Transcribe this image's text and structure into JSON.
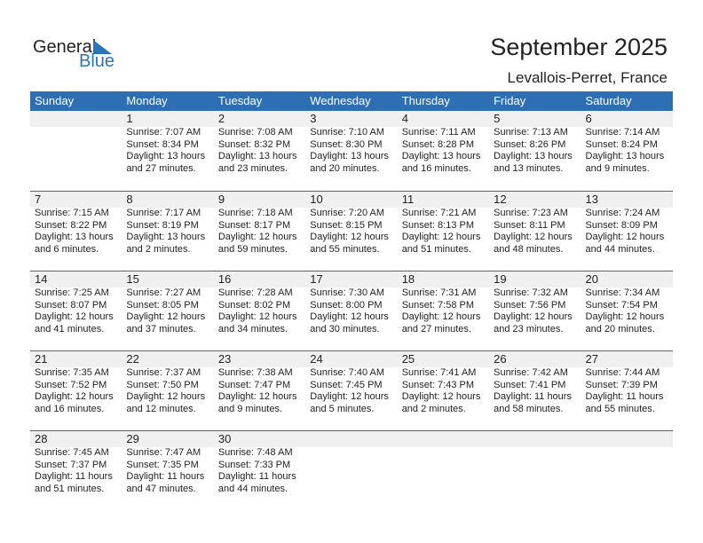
{
  "logo": {
    "line1": "General",
    "line2": "Blue"
  },
  "title": "September 2025",
  "location": "Levallois-Perret, France",
  "weekdays": [
    "Sunday",
    "Monday",
    "Tuesday",
    "Wednesday",
    "Thursday",
    "Friday",
    "Saturday"
  ],
  "colors": {
    "header": "#2e6fb3",
    "band": "#f0f0f0"
  },
  "weeks": [
    [
      null,
      {
        "day": "1",
        "sunrise": "Sunrise: 7:07 AM",
        "sunset": "Sunset: 8:34 PM",
        "daylight1": "Daylight: 13 hours",
        "daylight2": "and 27 minutes."
      },
      {
        "day": "2",
        "sunrise": "Sunrise: 7:08 AM",
        "sunset": "Sunset: 8:32 PM",
        "daylight1": "Daylight: 13 hours",
        "daylight2": "and 23 minutes."
      },
      {
        "day": "3",
        "sunrise": "Sunrise: 7:10 AM",
        "sunset": "Sunset: 8:30 PM",
        "daylight1": "Daylight: 13 hours",
        "daylight2": "and 20 minutes."
      },
      {
        "day": "4",
        "sunrise": "Sunrise: 7:11 AM",
        "sunset": "Sunset: 8:28 PM",
        "daylight1": "Daylight: 13 hours",
        "daylight2": "and 16 minutes."
      },
      {
        "day": "5",
        "sunrise": "Sunrise: 7:13 AM",
        "sunset": "Sunset: 8:26 PM",
        "daylight1": "Daylight: 13 hours",
        "daylight2": "and 13 minutes."
      },
      {
        "day": "6",
        "sunrise": "Sunrise: 7:14 AM",
        "sunset": "Sunset: 8:24 PM",
        "daylight1": "Daylight: 13 hours",
        "daylight2": "and 9 minutes."
      }
    ],
    [
      {
        "day": "7",
        "sunrise": "Sunrise: 7:15 AM",
        "sunset": "Sunset: 8:22 PM",
        "daylight1": "Daylight: 13 hours",
        "daylight2": "and 6 minutes."
      },
      {
        "day": "8",
        "sunrise": "Sunrise: 7:17 AM",
        "sunset": "Sunset: 8:19 PM",
        "daylight1": "Daylight: 13 hours",
        "daylight2": "and 2 minutes."
      },
      {
        "day": "9",
        "sunrise": "Sunrise: 7:18 AM",
        "sunset": "Sunset: 8:17 PM",
        "daylight1": "Daylight: 12 hours",
        "daylight2": "and 59 minutes."
      },
      {
        "day": "10",
        "sunrise": "Sunrise: 7:20 AM",
        "sunset": "Sunset: 8:15 PM",
        "daylight1": "Daylight: 12 hours",
        "daylight2": "and 55 minutes."
      },
      {
        "day": "11",
        "sunrise": "Sunrise: 7:21 AM",
        "sunset": "Sunset: 8:13 PM",
        "daylight1": "Daylight: 12 hours",
        "daylight2": "and 51 minutes."
      },
      {
        "day": "12",
        "sunrise": "Sunrise: 7:23 AM",
        "sunset": "Sunset: 8:11 PM",
        "daylight1": "Daylight: 12 hours",
        "daylight2": "and 48 minutes."
      },
      {
        "day": "13",
        "sunrise": "Sunrise: 7:24 AM",
        "sunset": "Sunset: 8:09 PM",
        "daylight1": "Daylight: 12 hours",
        "daylight2": "and 44 minutes."
      }
    ],
    [
      {
        "day": "14",
        "sunrise": "Sunrise: 7:25 AM",
        "sunset": "Sunset: 8:07 PM",
        "daylight1": "Daylight: 12 hours",
        "daylight2": "and 41 minutes."
      },
      {
        "day": "15",
        "sunrise": "Sunrise: 7:27 AM",
        "sunset": "Sunset: 8:05 PM",
        "daylight1": "Daylight: 12 hours",
        "daylight2": "and 37 minutes."
      },
      {
        "day": "16",
        "sunrise": "Sunrise: 7:28 AM",
        "sunset": "Sunset: 8:02 PM",
        "daylight1": "Daylight: 12 hours",
        "daylight2": "and 34 minutes."
      },
      {
        "day": "17",
        "sunrise": "Sunrise: 7:30 AM",
        "sunset": "Sunset: 8:00 PM",
        "daylight1": "Daylight: 12 hours",
        "daylight2": "and 30 minutes."
      },
      {
        "day": "18",
        "sunrise": "Sunrise: 7:31 AM",
        "sunset": "Sunset: 7:58 PM",
        "daylight1": "Daylight: 12 hours",
        "daylight2": "and 27 minutes."
      },
      {
        "day": "19",
        "sunrise": "Sunrise: 7:32 AM",
        "sunset": "Sunset: 7:56 PM",
        "daylight1": "Daylight: 12 hours",
        "daylight2": "and 23 minutes."
      },
      {
        "day": "20",
        "sunrise": "Sunrise: 7:34 AM",
        "sunset": "Sunset: 7:54 PM",
        "daylight1": "Daylight: 12 hours",
        "daylight2": "and 20 minutes."
      }
    ],
    [
      {
        "day": "21",
        "sunrise": "Sunrise: 7:35 AM",
        "sunset": "Sunset: 7:52 PM",
        "daylight1": "Daylight: 12 hours",
        "daylight2": "and 16 minutes."
      },
      {
        "day": "22",
        "sunrise": "Sunrise: 7:37 AM",
        "sunset": "Sunset: 7:50 PM",
        "daylight1": "Daylight: 12 hours",
        "daylight2": "and 12 minutes."
      },
      {
        "day": "23",
        "sunrise": "Sunrise: 7:38 AM",
        "sunset": "Sunset: 7:47 PM",
        "daylight1": "Daylight: 12 hours",
        "daylight2": "and 9 minutes."
      },
      {
        "day": "24",
        "sunrise": "Sunrise: 7:40 AM",
        "sunset": "Sunset: 7:45 PM",
        "daylight1": "Daylight: 12 hours",
        "daylight2": "and 5 minutes."
      },
      {
        "day": "25",
        "sunrise": "Sunrise: 7:41 AM",
        "sunset": "Sunset: 7:43 PM",
        "daylight1": "Daylight: 12 hours",
        "daylight2": "and 2 minutes."
      },
      {
        "day": "26",
        "sunrise": "Sunrise: 7:42 AM",
        "sunset": "Sunset: 7:41 PM",
        "daylight1": "Daylight: 11 hours",
        "daylight2": "and 58 minutes."
      },
      {
        "day": "27",
        "sunrise": "Sunrise: 7:44 AM",
        "sunset": "Sunset: 7:39 PM",
        "daylight1": "Daylight: 11 hours",
        "daylight2": "and 55 minutes."
      }
    ],
    [
      {
        "day": "28",
        "sunrise": "Sunrise: 7:45 AM",
        "sunset": "Sunset: 7:37 PM",
        "daylight1": "Daylight: 11 hours",
        "daylight2": "and 51 minutes."
      },
      {
        "day": "29",
        "sunrise": "Sunrise: 7:47 AM",
        "sunset": "Sunset: 7:35 PM",
        "daylight1": "Daylight: 11 hours",
        "daylight2": "and 47 minutes."
      },
      {
        "day": "30",
        "sunrise": "Sunrise: 7:48 AM",
        "sunset": "Sunset: 7:33 PM",
        "daylight1": "Daylight: 11 hours",
        "daylight2": "and 44 minutes."
      },
      null,
      null,
      null,
      null
    ]
  ]
}
